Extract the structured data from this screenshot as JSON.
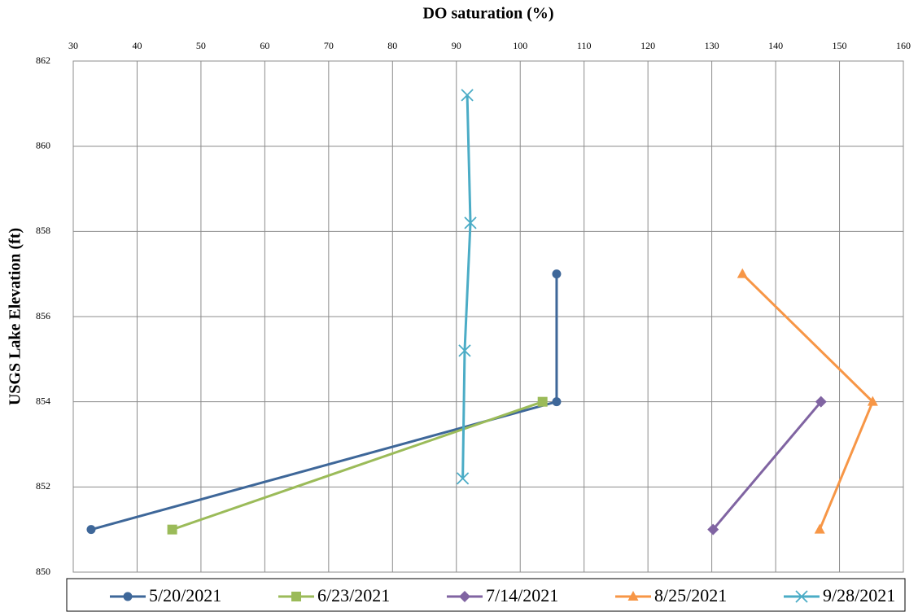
{
  "chart_data": {
    "type": "line",
    "title": "DO saturation (%)",
    "y_label": "USGS Lake Elevation (ft)",
    "xlim": [
      30,
      160
    ],
    "xticks": [
      30,
      40,
      50,
      60,
      70,
      80,
      90,
      100,
      110,
      120,
      130,
      140,
      150,
      160
    ],
    "ylim": [
      850,
      862
    ],
    "yticks": [
      850,
      852,
      854,
      856,
      858,
      860,
      862
    ],
    "grid": true,
    "x_axis_position": "top",
    "legend": "bottom",
    "series": [
      {
        "name": "5/20/2021",
        "color": "#3e6799",
        "marker": "circle",
        "x": [
          32.8,
          105.7,
          105.7
        ],
        "values": [
          851,
          854,
          857
        ]
      },
      {
        "name": "6/23/2021",
        "color": "#9bbb59",
        "marker": "square",
        "x": [
          45.5,
          103.5
        ],
        "values": [
          851,
          854
        ]
      },
      {
        "name": "7/14/2021",
        "color": "#8064a2",
        "marker": "diamond",
        "x": [
          130.2,
          147.1
        ],
        "values": [
          851,
          854
        ]
      },
      {
        "name": "8/25/2021",
        "color": "#f79646",
        "marker": "triangle",
        "x": [
          134.8,
          155.2,
          146.9
        ],
        "values": [
          857,
          854,
          851
        ]
      },
      {
        "name": "9/28/2021",
        "color": "#4bacc6",
        "marker": "x",
        "x": [
          91.7,
          92.2,
          91.3,
          91.0
        ],
        "values": [
          861.2,
          858.2,
          855.2,
          852.2
        ]
      }
    ]
  }
}
